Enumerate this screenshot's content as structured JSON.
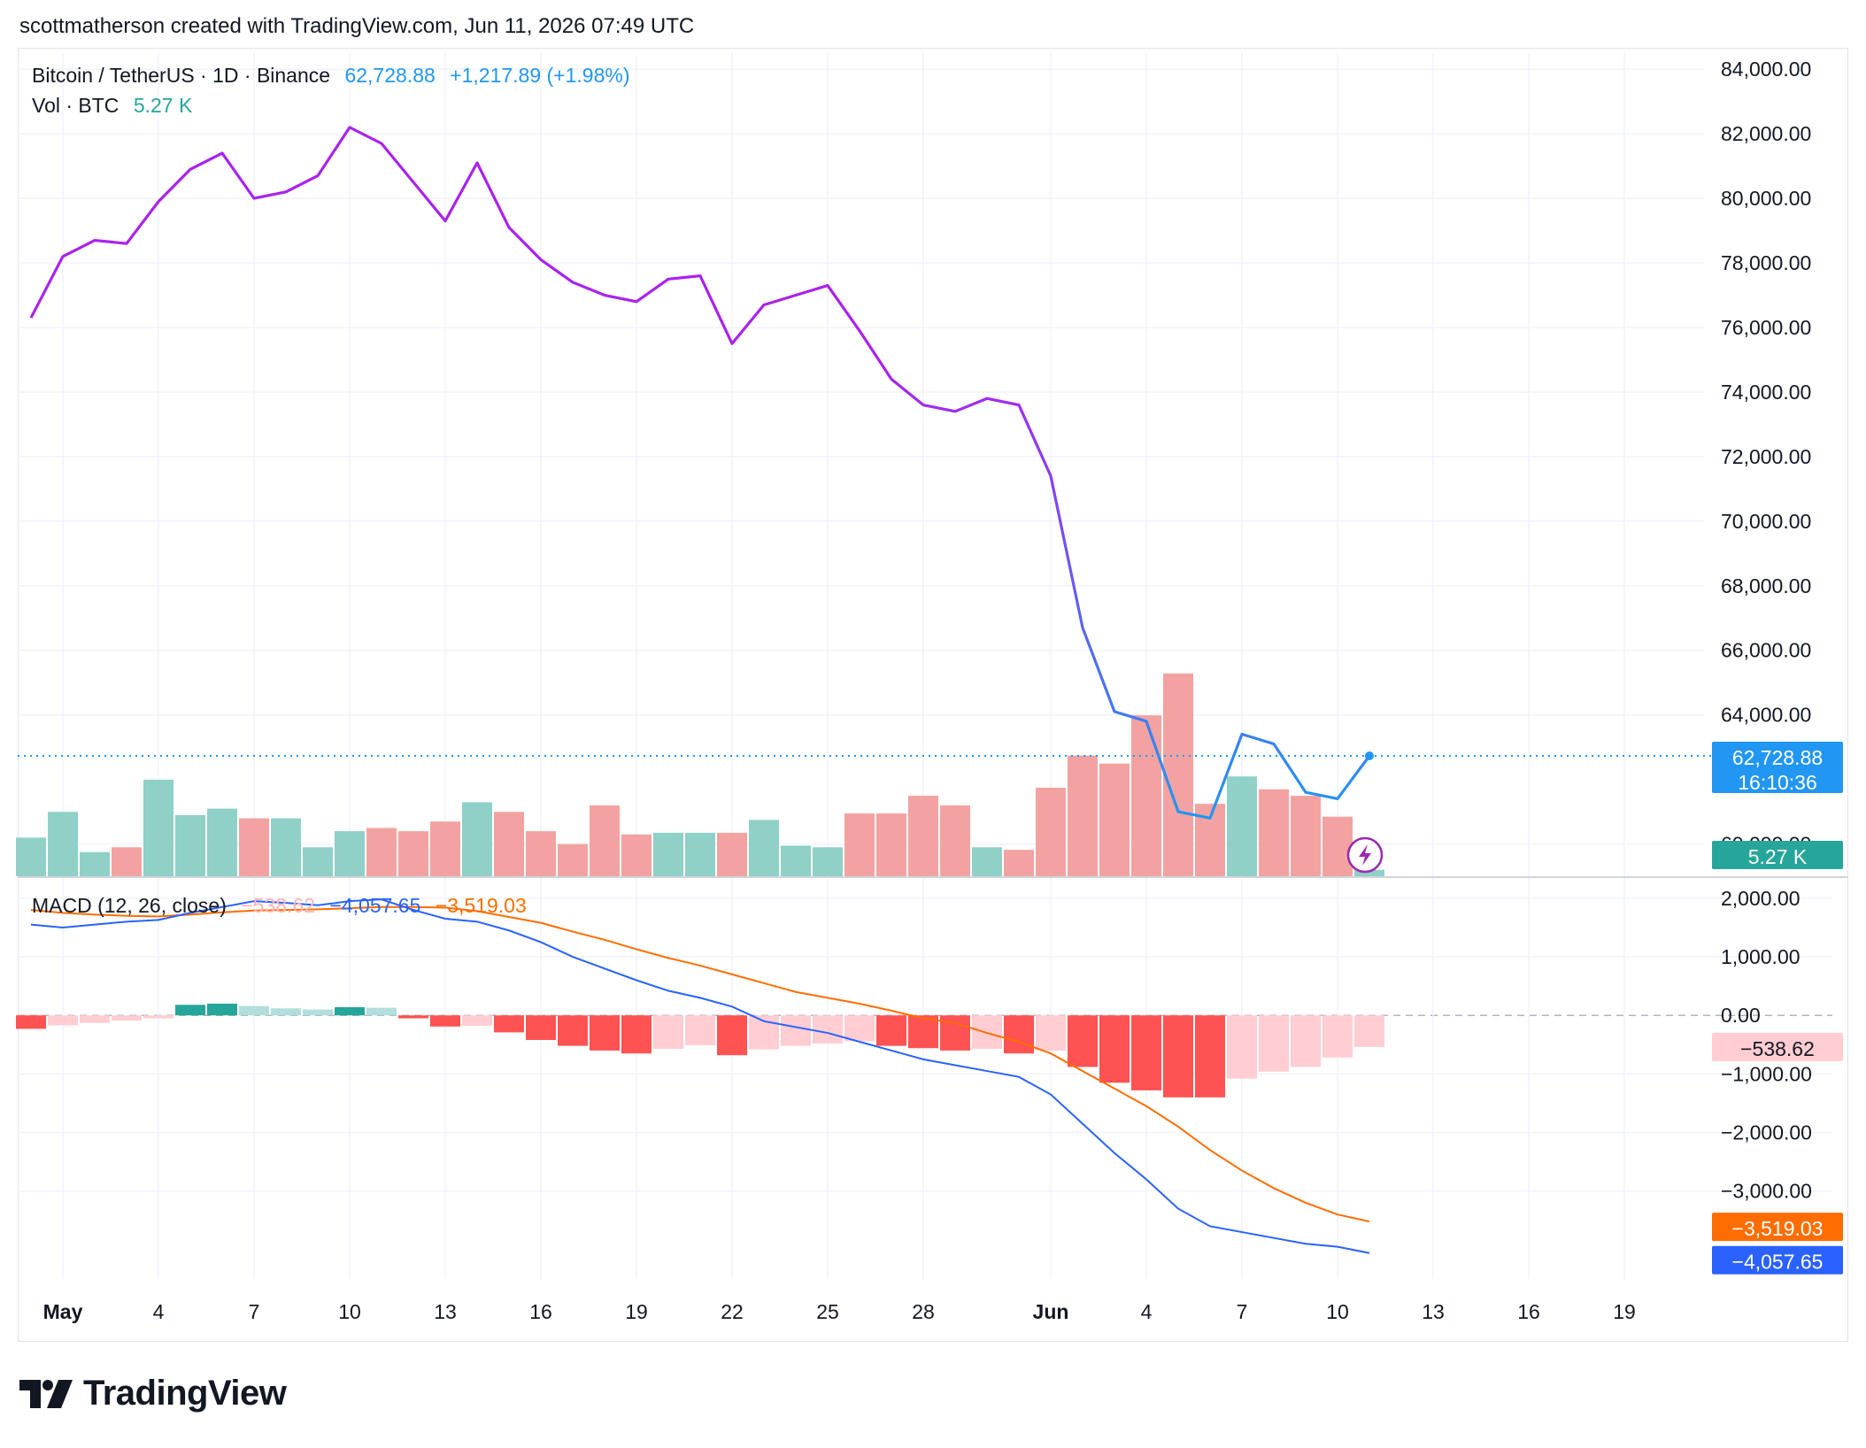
{
  "header": {
    "text": "scottmatherson created with TradingView.com, Jun 11, 2026 07:49 UTC"
  },
  "legend": {
    "symbol": "Bitcoin / TetherUS · 1D · Binance",
    "price": "62,728.88",
    "change": "+1,217.89 (+1.98%)",
    "vol_label": "Vol · BTC",
    "vol_value": "5.27 K",
    "macd_label": "MACD (12, 26, close)",
    "macd_hist": "−538.62",
    "macd_line": "−4,057.65",
    "macd_signal": "−3,519.03"
  },
  "badges": {
    "price": "62,728.88",
    "countdown": "16:10:36",
    "volume": "5.27 K",
    "hist": "−538.62",
    "signal": "−3,519.03",
    "macd": "−4,057.65"
  },
  "colors": {
    "price_line_top": "#aa22ee",
    "price_line_bottom": "#2196f3",
    "vol_up": "#8fd0c7",
    "vol_down": "#f2a3a1",
    "macd_line": "#2962ff",
    "signal_line": "#ff6d00",
    "hist_strong_neg": "#ff5252",
    "hist_weak_neg": "#ffcdd2",
    "hist_strong_pos": "#26a69a",
    "hist_weak_pos": "#b2dfdb",
    "grid": "#f0f3fa"
  },
  "brand": {
    "name": "TradingView"
  },
  "chart_data": [
    {
      "type": "line",
      "title": "Bitcoin / TetherUS · 1D · Binance",
      "x": [
        "Apr 30",
        "May 1",
        "May 2",
        "May 3",
        "May 4",
        "May 5",
        "May 6",
        "May 7",
        "May 8",
        "May 9",
        "May 10",
        "May 11",
        "May 12",
        "May 13",
        "May 14",
        "May 15",
        "May 16",
        "May 17",
        "May 18",
        "May 19",
        "May 20",
        "May 21",
        "May 22",
        "May 23",
        "May 24",
        "May 25",
        "May 26",
        "May 27",
        "May 28",
        "May 29",
        "May 30",
        "May 31",
        "Jun 1",
        "Jun 2",
        "Jun 3",
        "Jun 4",
        "Jun 5",
        "Jun 6",
        "Jun 7",
        "Jun 8",
        "Jun 9",
        "Jun 10",
        "Jun 11"
      ],
      "series": [
        {
          "name": "Bitcoin / TetherUS",
          "values": [
            76300,
            78200,
            78700,
            78600,
            79900,
            80900,
            81400,
            80000,
            80200,
            80700,
            82200,
            81700,
            80500,
            79300,
            81100,
            79100,
            78100,
            77400,
            77000,
            76800,
            77500,
            77600,
            75500,
            76700,
            77000,
            77300,
            75900,
            74400,
            73600,
            73400,
            73800,
            73600,
            71400,
            66700,
            64100,
            63800,
            61000,
            60800,
            63400,
            63100,
            61600,
            61400,
            62728.88
          ]
        }
      ],
      "ylim": [
        59000,
        84500
      ],
      "ytick_labels": [
        "84,000.00",
        "82,000.00",
        "80,000.00",
        "78,000.00",
        "76,000.00",
        "74,000.00",
        "72,000.00",
        "70,000.00",
        "68,000.00",
        "66,000.00",
        "64,000.00",
        "60,000.00"
      ],
      "xtick_labels": [
        "May",
        "4",
        "7",
        "10",
        "13",
        "16",
        "19",
        "22",
        "25",
        "28",
        "Jun",
        "4",
        "7",
        "10",
        "13",
        "16",
        "19"
      ],
      "volume": {
        "name": "Vol · BTC",
        "values": [
          1.2,
          2.0,
          0.75,
          0.9,
          3.0,
          1.9,
          2.1,
          1.8,
          1.8,
          0.9,
          1.4,
          1.5,
          1.4,
          1.7,
          2.3,
          2.0,
          1.4,
          1.0,
          2.2,
          1.3,
          1.35,
          1.35,
          1.35,
          1.75,
          0.95,
          0.9,
          1.95,
          1.95,
          2.5,
          2.2,
          0.9,
          0.82,
          2.75,
          3.75,
          3.5,
          5.0,
          6.3,
          2.25,
          3.1,
          2.7,
          2.5,
          1.85,
          0.2
        ],
        "direction": [
          "up",
          "up",
          "up",
          "down",
          "up",
          "up",
          "up",
          "down",
          "up",
          "up",
          "up",
          "down",
          "down",
          "down",
          "up",
          "down",
          "down",
          "down",
          "down",
          "down",
          "up",
          "up",
          "down",
          "up",
          "up",
          "up",
          "down",
          "down",
          "down",
          "down",
          "up",
          "down",
          "down",
          "down",
          "down",
          "down",
          "down",
          "down",
          "up",
          "down",
          "down",
          "down",
          "up"
        ]
      }
    },
    {
      "type": "line",
      "title": "MACD (12, 26, close)",
      "x": [
        "Apr 30",
        "May 1",
        "May 2",
        "May 3",
        "May 4",
        "May 5",
        "May 6",
        "May 7",
        "May 8",
        "May 9",
        "May 10",
        "May 11",
        "May 12",
        "May 13",
        "May 14",
        "May 15",
        "May 16",
        "May 17",
        "May 18",
        "May 19",
        "May 20",
        "May 21",
        "May 22",
        "May 23",
        "May 24",
        "May 25",
        "May 26",
        "May 27",
        "May 28",
        "May 29",
        "May 30",
        "May 31",
        "Jun 1",
        "Jun 2",
        "Jun 3",
        "Jun 4",
        "Jun 5",
        "Jun 6",
        "Jun 7",
        "Jun 8",
        "Jun 9",
        "Jun 10",
        "Jun 11"
      ],
      "series": [
        {
          "name": "MACD",
          "values": [
            1550,
            1500,
            1550,
            1600,
            1630,
            1750,
            1850,
            1950,
            1920,
            1880,
            1950,
            1980,
            1800,
            1650,
            1600,
            1450,
            1250,
            1000,
            800,
            600,
            420,
            300,
            150,
            -100,
            -200,
            -300,
            -450,
            -600,
            -750,
            -850,
            -950,
            -1050,
            -1350,
            -1850,
            -2350,
            -2800,
            -3300,
            -3600,
            -3700,
            -3800,
            -3900,
            -3950,
            -4057.65
          ]
        },
        {
          "name": "Signal",
          "values": [
            1800,
            1750,
            1720,
            1700,
            1690,
            1720,
            1760,
            1790,
            1800,
            1810,
            1830,
            1850,
            1850,
            1840,
            1780,
            1680,
            1580,
            1430,
            1290,
            1130,
            980,
            850,
            700,
            550,
            400,
            300,
            200,
            80,
            -50,
            -130,
            -300,
            -450,
            -650,
            -950,
            -1250,
            -1550,
            -1900,
            -2300,
            -2650,
            -2950,
            -3200,
            -3400,
            -3519.03
          ]
        }
      ],
      "histogram": [
        -230,
        -170,
        -130,
        -90,
        -50,
        180,
        200,
        160,
        120,
        100,
        140,
        130,
        -50,
        -190,
        -180,
        -290,
        -420,
        -520,
        -600,
        -650,
        -570,
        -510,
        -680,
        -580,
        -520,
        -480,
        -440,
        -520,
        -560,
        -600,
        -570,
        -650,
        -600,
        -880,
        -1150,
        -1280,
        -1400,
        -1400,
        -1080,
        -960,
        -880,
        -720,
        -538.62
      ],
      "ylim": [
        -4500,
        2300
      ],
      "ytick_labels": [
        "2,000.00",
        "1,000.00",
        "0.00",
        "−1,000.00",
        "−2,000.00",
        "−3,000.00"
      ]
    }
  ]
}
